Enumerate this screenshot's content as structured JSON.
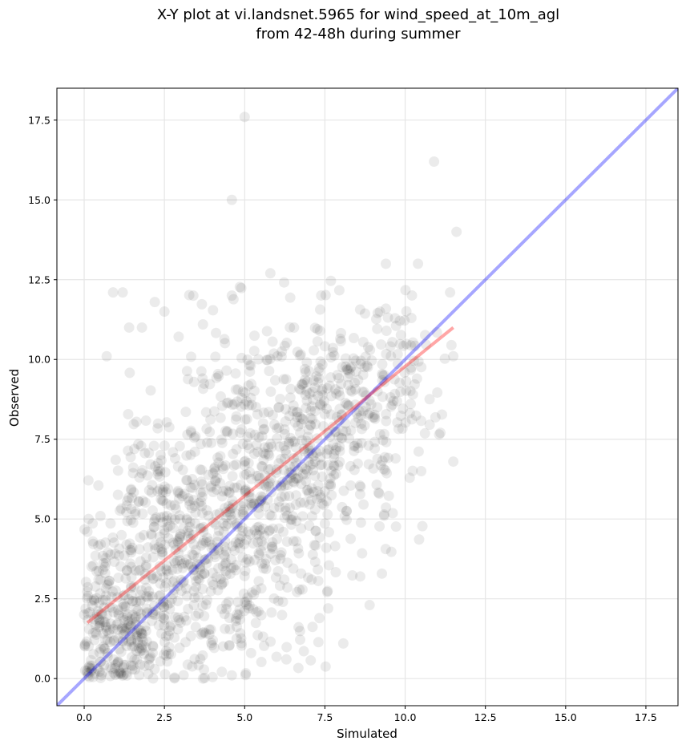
{
  "chart_data": {
    "type": "scatter",
    "title_line1": "X-Y plot at vi.landsnet.5965 for wind_speed_at_10m_agl",
    "title_line2": "from 42-48h during summer",
    "xlabel": "Simulated",
    "ylabel": "Observed",
    "xlim": [
      -0.85,
      18.5
    ],
    "ylim": [
      -0.85,
      18.5
    ],
    "xticks": [
      0.0,
      2.5,
      5.0,
      7.5,
      10.0,
      12.5,
      15.0,
      17.5
    ],
    "yticks": [
      0.0,
      2.5,
      5.0,
      7.5,
      10.0,
      12.5,
      15.0,
      17.5
    ],
    "tick_labels": [
      "0.0",
      "2.5",
      "5.0",
      "7.5",
      "10.0",
      "12.5",
      "15.0",
      "17.5"
    ],
    "grid": true,
    "colors": {
      "points": "#000000",
      "identity_line": "#0000ff",
      "fit_line": "#ff0000",
      "grid": "#e6e6e6"
    },
    "identity_line": {
      "x": [
        -0.85,
        18.5
      ],
      "y": [
        -0.85,
        18.5
      ]
    },
    "fit_line": {
      "x": [
        0.1,
        11.5
      ],
      "y": [
        1.75,
        11.0
      ]
    },
    "notable_points": [
      {
        "x": 5.0,
        "y": 17.6
      },
      {
        "x": 10.9,
        "y": 16.2
      },
      {
        "x": 4.6,
        "y": 15.0
      },
      {
        "x": 11.6,
        "y": 14.0
      },
      {
        "x": 9.4,
        "y": 13.0
      },
      {
        "x": 10.4,
        "y": 13.0
      },
      {
        "x": 5.8,
        "y": 12.7
      },
      {
        "x": 0.9,
        "y": 12.1
      },
      {
        "x": 1.2,
        "y": 12.1
      },
      {
        "x": 2.2,
        "y": 11.8
      },
      {
        "x": 11.4,
        "y": 12.1
      },
      {
        "x": 11.5,
        "y": 10.1
      },
      {
        "x": 11.1,
        "y": 7.7
      },
      {
        "x": 11.5,
        "y": 6.8
      },
      {
        "x": 10.5,
        "y": 6.5
      },
      {
        "x": 7.6,
        "y": 2.2
      },
      {
        "x": 8.6,
        "y": 3.2
      },
      {
        "x": 0.1,
        "y": 4.6
      },
      {
        "x": 3.7,
        "y": 0.0
      },
      {
        "x": 4.6,
        "y": 0.1
      },
      {
        "x": 5.2,
        "y": 0.8
      },
      {
        "x": 6.3,
        "y": 0.6
      },
      {
        "x": 0.7,
        "y": 10.1
      },
      {
        "x": 1.4,
        "y": 11.0
      },
      {
        "x": 1.8,
        "y": 11.0
      },
      {
        "x": 2.5,
        "y": 11.5
      },
      {
        "x": 3.4,
        "y": 12.0
      },
      {
        "x": 3.7,
        "y": 11.1
      },
      {
        "x": 4.6,
        "y": 12.0
      },
      {
        "x": 9.7,
        "y": 6.9
      }
    ],
    "cluster_regions": [
      {
        "cx": 1.1,
        "cy": 1.5,
        "sx": 0.8,
        "sy": 1.0,
        "n": 260
      },
      {
        "cx": 2.9,
        "cy": 4.5,
        "sx": 1.3,
        "sy": 1.8,
        "n": 380
      },
      {
        "cx": 5.5,
        "cy": 6.3,
        "sx": 1.5,
        "sy": 2.0,
        "n": 420
      },
      {
        "cx": 7.8,
        "cy": 8.2,
        "sx": 1.4,
        "sy": 1.9,
        "n": 260
      },
      {
        "cx": 9.6,
        "cy": 9.5,
        "sx": 1.0,
        "sy": 1.6,
        "n": 90
      },
      {
        "cx": 4.8,
        "cy": 2.4,
        "sx": 1.5,
        "sy": 1.3,
        "n": 120
      }
    ]
  }
}
